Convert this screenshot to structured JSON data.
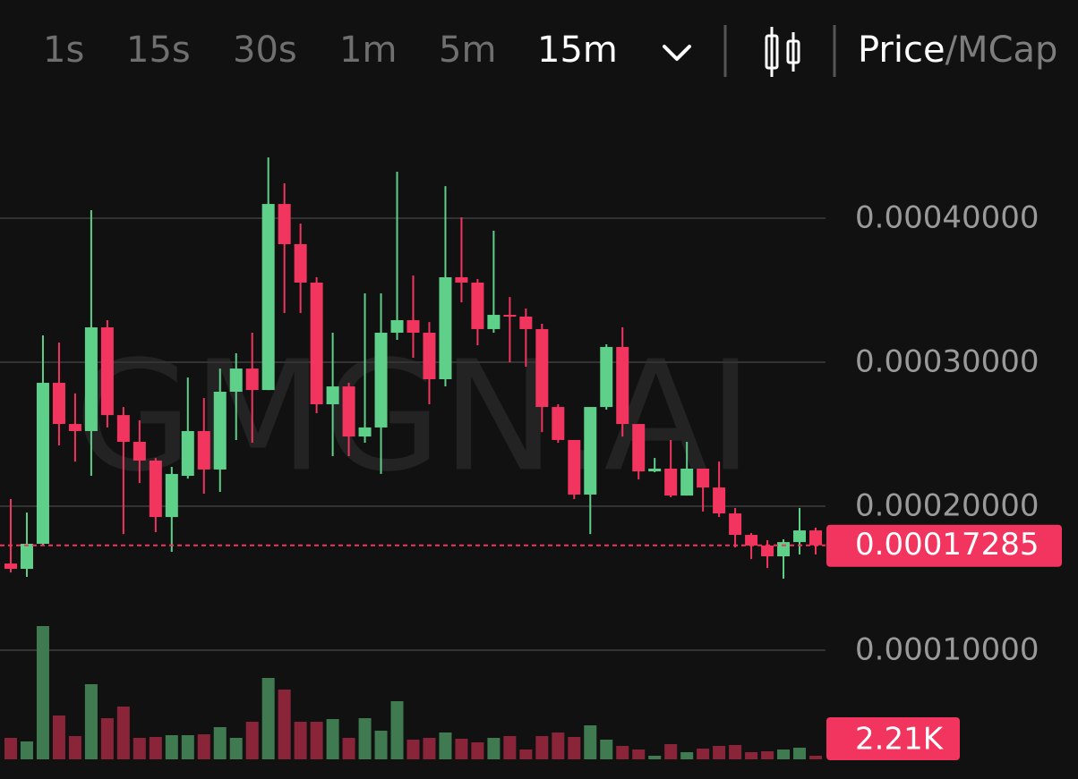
{
  "toolbar": {
    "intervals": [
      "1s",
      "15s",
      "30s",
      "1m",
      "5m",
      "15m"
    ],
    "active": "15m",
    "price": "Price",
    "mcap": "/MCap"
  },
  "chart_data": {
    "type": "candlestick",
    "watermark": "GMGN.AI",
    "up_color": "#5fd08a",
    "down_color": "#f2355e",
    "volume_up_color": "#3f7a50",
    "volume_down_color": "#8a2439",
    "grid": true,
    "ylim": [
      0,
      0.00047
    ],
    "yticks": [
      {
        "value": 0.0001,
        "label": "0.00010000"
      },
      {
        "value": 0.0002,
        "label": "0.00020000"
      },
      {
        "value": 0.0003,
        "label": "0.00030000"
      },
      {
        "value": 0.0004,
        "label": "0.00040000"
      }
    ],
    "open": [
      0.0001602,
      0.0001565,
      0.0001739,
      0.0002857,
      0.0002571,
      0.0002522,
      0.0003242,
      0.0002633,
      0.0002447,
      0.0002317,
      0.0001925,
      0.0002211,
      0.0002522,
      0.0002255,
      0.0002795,
      0.0002956,
      0.0002807,
      0.0004099,
      0.000382,
      0.0003553,
      0.0002708,
      0.0002832,
      0.0002484,
      0.0002547,
      0.0003205,
      0.0003292,
      0.0003205,
      0.0002882,
      0.000359,
      0.0003553,
      0.000323,
      0.0003329,
      0.0003317,
      0.000323,
      0.0002689,
      0.000246,
      0.0002081,
      0.0002689,
      0.0003106,
      0.0002571,
      0.0002242,
      0.0002261,
      0.0002074,
      0.0002261,
      0.000213,
      0.000195,
      0.0001801,
      0.0001727,
      0.0001652,
      0.0001751,
      0.0001832
    ],
    "high": [
      0.000205,
      0.0001956,
      0.0003186,
      0.0003137,
      0.0002783,
      0.0004056,
      0.0003292,
      0.0002689,
      0.0002596,
      0.0002335,
      0.0002273,
      0.0002894,
      0.0002751,
      0.0002956,
      0.0003062,
      0.0003205,
      0.0004422,
      0.0004242,
      0.0003963,
      0.000359,
      0.0003205,
      0.0002857,
      0.0003478,
      0.0003478,
      0.0004323,
      0.0003602,
      0.0003279,
      0.0004223,
      0.0004006,
      0.0003578,
      0.0003913,
      0.0003453,
      0.0003373,
      0.0003267,
      0.0002708,
      0.000246,
      0.0002689,
      0.0003124,
      0.0003242,
      0.0002571,
      0.0002335,
      0.000246,
      0.0002447,
      0.0002261,
      0.000231,
      0.0001988,
      0.0001814,
      0.0001764,
      0.000177,
      0.0001988,
      0.0001851
    ],
    "low": [
      0.000154,
      0.0001509,
      0.0001727,
      0.0002422,
      0.000231,
      0.0002211,
      0.0002547,
      0.0001807,
      0.0002161,
      0.000182,
      0.0001683,
      0.0002192,
      0.0002087,
      0.0002099,
      0.000246,
      0.0002441,
      0.0002807,
      0.0003342,
      0.0003342,
      0.0002646,
      0.0002348,
      0.0002348,
      0.0002441,
      0.0002224,
      0.0003155,
      0.0003031,
      0.0002708,
      0.0002832,
      0.0003416,
      0.0003118,
      0.0003205,
      0.0003,
      0.0002969,
      0.0002515,
      0.0002441,
      0.000205,
      0.0001807,
      0.0002671,
      0.0002484,
      0.0002186,
      0.0002236,
      0.0002062,
      0.0002074,
      0.0001963,
      0.0001925,
      0.0001714,
      0.0001633,
      0.0001571,
      0.0001497,
      0.0001665,
      0.0001665
    ],
    "close": [
      0.0001565,
      0.0001739,
      0.0002857,
      0.0002571,
      0.0002522,
      0.0003242,
      0.0002633,
      0.0002447,
      0.0002317,
      0.0001925,
      0.0002224,
      0.0002522,
      0.0002255,
      0.0002795,
      0.0002956,
      0.0002807,
      0.0004099,
      0.000382,
      0.0003553,
      0.0002708,
      0.0002832,
      0.0002484,
      0.0002547,
      0.0003205,
      0.0003292,
      0.0003205,
      0.0002882,
      0.000359,
      0.0003553,
      0.000323,
      0.0003329,
      0.0003317,
      0.000323,
      0.0002689,
      0.000246,
      0.0002081,
      0.0002689,
      0.0003106,
      0.0002571,
      0.0002242,
      0.0002261,
      0.0002074,
      0.0002261,
      0.000213,
      0.000195,
      0.0001801,
      0.0001727,
      0.0001652,
      0.0001751,
      0.0001832,
      0.00017285
    ],
    "volume": [
      13260,
      11050,
      82323,
      27073,
      14365,
      46410,
      25415,
      32598,
      13260,
      13813,
      14918,
      14918,
      15470,
      19890,
      13260,
      23205,
      50278,
      43095,
      23205,
      23205,
      24863,
      13260,
      25415,
      17680,
      35913,
      12155,
      13260,
      16575,
      12708,
      10498,
      13260,
      14365,
      6078,
      14365,
      16575,
      13813,
      20995,
      12155,
      8288,
      6078,
      2210,
      9393,
      4420,
      6630,
      8288,
      8840,
      4420,
      4973,
      6078,
      7183,
      2210
    ],
    "volume_value_labels": [
      null,
      null,
      null,
      null,
      null,
      null,
      null,
      null,
      null,
      null,
      null,
      null,
      null,
      null,
      null,
      null,
      null,
      null,
      null,
      null,
      null,
      null,
      null,
      null,
      null,
      null,
      null,
      null,
      null,
      null,
      null,
      null,
      null,
      null,
      null,
      null,
      null,
      null,
      null,
      null,
      null,
      null,
      null,
      null,
      null,
      null,
      null,
      null,
      null,
      null,
      "2.21K"
    ]
  }
}
